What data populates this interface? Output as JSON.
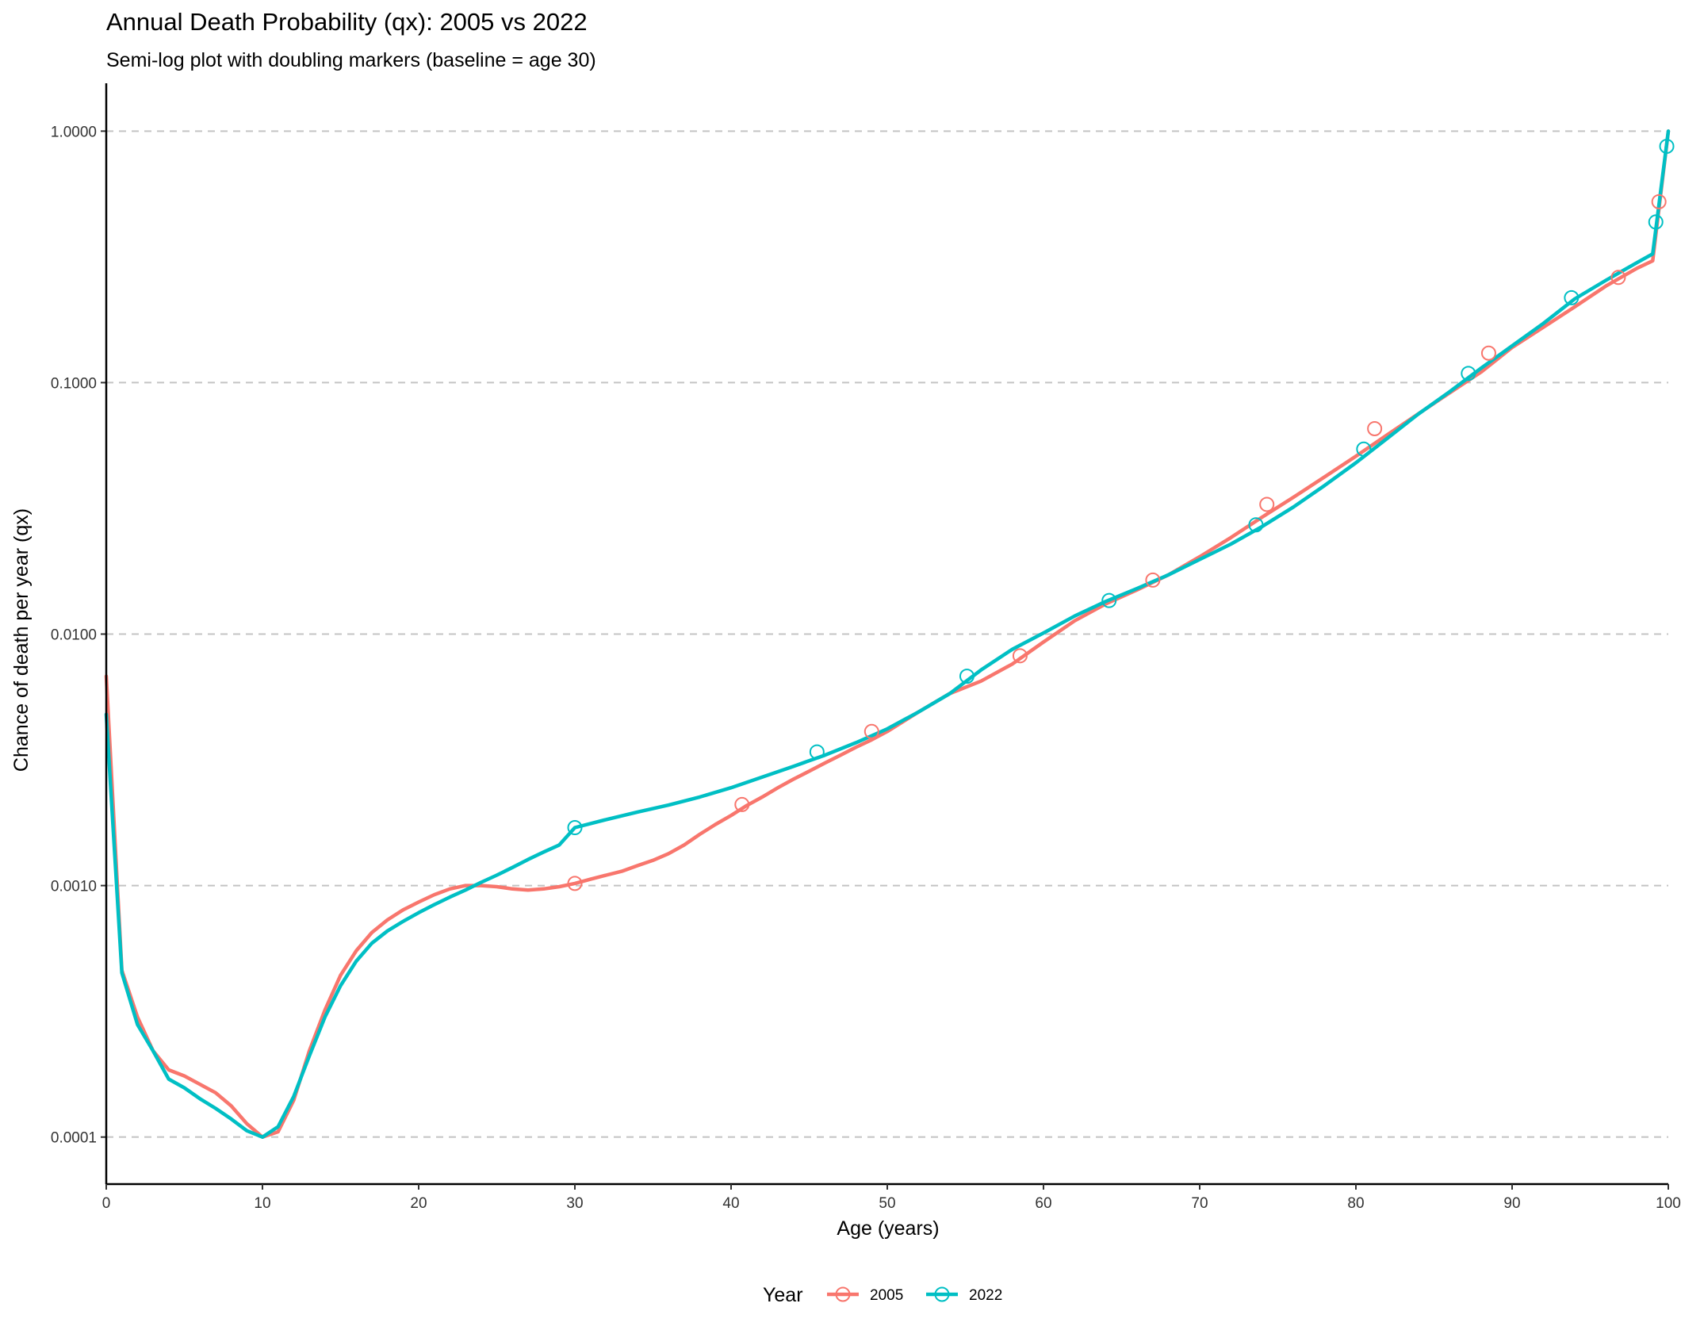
{
  "chart_data": {
    "type": "line",
    "title": "Annual Death Probability (qx): 2005 vs 2022",
    "subtitle": "Semi-log plot with doubling markers (baseline = age 30)",
    "xlabel": "Age (years)",
    "ylabel": "Chance of death per year (qx)",
    "xlim": [
      0,
      100
    ],
    "xticks": [
      0,
      10,
      20,
      30,
      40,
      50,
      60,
      70,
      80,
      90,
      100
    ],
    "xtick_labels": [
      "0",
      "10",
      "20",
      "30",
      "40",
      "50",
      "60",
      "70",
      "80",
      "90",
      "100"
    ],
    "yscale": "log10",
    "ylim": [
      6.5e-05,
      1.55
    ],
    "yticks": [
      0.0001,
      0.001,
      0.01,
      0.1,
      1
    ],
    "ytick_labels": [
      "0.0001",
      "0.0010",
      "0.0100",
      "0.1000",
      "1.0000"
    ],
    "grid": "horizontal dashed",
    "legend": {
      "title": "Year",
      "position": "bottom",
      "entries": [
        "2005",
        "2022"
      ]
    },
    "series": [
      {
        "name": "2005",
        "color": "#F8766D",
        "points": [
          [
            0,
            0.0068
          ],
          [
            1,
            0.00046
          ],
          [
            2,
            0.0003
          ],
          [
            3,
            0.00022
          ],
          [
            4,
            0.000185
          ],
          [
            5,
            0.000175
          ],
          [
            6,
            0.000162
          ],
          [
            7,
            0.00015
          ],
          [
            8,
            0.000133
          ],
          [
            9,
            0.000113
          ],
          [
            10,
            0.0001
          ],
          [
            11,
            0.000105
          ],
          [
            12,
            0.00014
          ],
          [
            13,
            0.00022
          ],
          [
            14,
            0.00032
          ],
          [
            15,
            0.00044
          ],
          [
            16,
            0.00055
          ],
          [
            17,
            0.00065
          ],
          [
            18,
            0.00073
          ],
          [
            19,
            0.0008
          ],
          [
            20,
            0.00086
          ],
          [
            21,
            0.00092
          ],
          [
            22,
            0.00097
          ],
          [
            23,
            0.001
          ],
          [
            24,
            0.001
          ],
          [
            25,
            0.00099
          ],
          [
            26,
            0.00097
          ],
          [
            27,
            0.00096
          ],
          [
            28,
            0.00097
          ],
          [
            29,
            0.00099
          ],
          [
            30,
            0.00102
          ],
          [
            31,
            0.00106
          ],
          [
            32,
            0.0011
          ],
          [
            33,
            0.00114
          ],
          [
            34,
            0.0012
          ],
          [
            35,
            0.00126
          ],
          [
            36,
            0.00134
          ],
          [
            37,
            0.00145
          ],
          [
            38,
            0.0016
          ],
          [
            39,
            0.00175
          ],
          [
            40,
            0.0019
          ],
          [
            41,
            0.00208
          ],
          [
            42,
            0.00225
          ],
          [
            43,
            0.00245
          ],
          [
            44,
            0.00265
          ],
          [
            45,
            0.00285
          ],
          [
            46,
            0.00307
          ],
          [
            47,
            0.0033
          ],
          [
            48,
            0.00355
          ],
          [
            49,
            0.0038
          ],
          [
            50,
            0.0041
          ],
          [
            52,
            0.0049
          ],
          [
            54,
            0.0058
          ],
          [
            56,
            0.0065
          ],
          [
            58,
            0.0076
          ],
          [
            60,
            0.0093
          ],
          [
            62,
            0.0113
          ],
          [
            64,
            0.0132
          ],
          [
            66,
            0.015
          ],
          [
            68,
            0.0172
          ],
          [
            70,
            0.0203
          ],
          [
            72,
            0.0242
          ],
          [
            74,
            0.0292
          ],
          [
            76,
            0.035
          ],
          [
            78,
            0.0422
          ],
          [
            80,
            0.051
          ],
          [
            82,
            0.062
          ],
          [
            84,
            0.0752
          ],
          [
            86,
            0.091
          ],
          [
            88,
            0.11
          ],
          [
            90,
            0.138
          ],
          [
            92,
            0.166
          ],
          [
            94,
            0.2
          ],
          [
            96,
            0.242
          ],
          [
            98,
            0.285
          ],
          [
            99,
            0.305
          ],
          [
            100,
            1.0
          ]
        ],
        "doubling_markers": [
          [
            30,
            0.00102
          ],
          [
            40.7,
            0.0021
          ],
          [
            49,
            0.0041
          ],
          [
            58.5,
            0.0082
          ],
          [
            67,
            0.0164
          ],
          [
            74.3,
            0.0328
          ],
          [
            81.2,
            0.0656
          ],
          [
            88.5,
            0.131
          ],
          [
            96.8,
            0.262
          ],
          [
            99.4,
            0.524
          ]
        ]
      },
      {
        "name": "2022",
        "color": "#00BFC4",
        "points": [
          [
            0,
            0.0048
          ],
          [
            1,
            0.00045
          ],
          [
            2,
            0.00028
          ],
          [
            3,
            0.00022
          ],
          [
            4,
            0.00017
          ],
          [
            5,
            0.000157
          ],
          [
            6,
            0.000142
          ],
          [
            7,
            0.00013
          ],
          [
            8,
            0.000118
          ],
          [
            9,
            0.000106
          ],
          [
            10,
            0.0001
          ],
          [
            11,
            0.00011
          ],
          [
            12,
            0.000145
          ],
          [
            13,
            0.00021
          ],
          [
            14,
            0.0003
          ],
          [
            15,
            0.0004
          ],
          [
            16,
            0.0005
          ],
          [
            17,
            0.00059
          ],
          [
            18,
            0.00066
          ],
          [
            19,
            0.00072
          ],
          [
            20,
            0.00078
          ],
          [
            21,
            0.00084
          ],
          [
            22,
            0.0009
          ],
          [
            23,
            0.00096
          ],
          [
            24,
            0.00103
          ],
          [
            25,
            0.0011
          ],
          [
            26,
            0.00118
          ],
          [
            27,
            0.00127
          ],
          [
            28,
            0.00136
          ],
          [
            29,
            0.00145
          ],
          [
            30,
            0.0017
          ],
          [
            32,
            0.00183
          ],
          [
            34,
            0.00196
          ],
          [
            36,
            0.00209
          ],
          [
            38,
            0.00225
          ],
          [
            40,
            0.00245
          ],
          [
            42,
            0.0027
          ],
          [
            44,
            0.00298
          ],
          [
            46,
            0.0033
          ],
          [
            48,
            0.0037
          ],
          [
            50,
            0.0042
          ],
          [
            52,
            0.0049
          ],
          [
            54,
            0.0058
          ],
          [
            56,
            0.0072
          ],
          [
            58,
            0.0087
          ],
          [
            60,
            0.0101
          ],
          [
            62,
            0.0118
          ],
          [
            64,
            0.0135
          ],
          [
            66,
            0.0152
          ],
          [
            68,
            0.0172
          ],
          [
            70,
            0.0198
          ],
          [
            72,
            0.0228
          ],
          [
            74,
            0.0268
          ],
          [
            76,
            0.032
          ],
          [
            78,
            0.039
          ],
          [
            80,
            0.048
          ],
          [
            82,
            0.06
          ],
          [
            84,
            0.075
          ],
          [
            86,
            0.092
          ],
          [
            88,
            0.114
          ],
          [
            90,
            0.14
          ],
          [
            92,
            0.172
          ],
          [
            94,
            0.215
          ],
          [
            96,
            0.255
          ],
          [
            98,
            0.3
          ],
          [
            99,
            0.325
          ],
          [
            100,
            1.0
          ]
        ],
        "doubling_markers": [
          [
            30,
            0.0017
          ],
          [
            45.5,
            0.0034
          ],
          [
            55.1,
            0.0068
          ],
          [
            64.2,
            0.0136
          ],
          [
            73.6,
            0.0272
          ],
          [
            80.5,
            0.0544
          ],
          [
            87.2,
            0.1088
          ],
          [
            93.8,
            0.2176
          ],
          [
            99.2,
            0.4352
          ],
          [
            99.9,
            0.8704
          ]
        ]
      }
    ]
  }
}
